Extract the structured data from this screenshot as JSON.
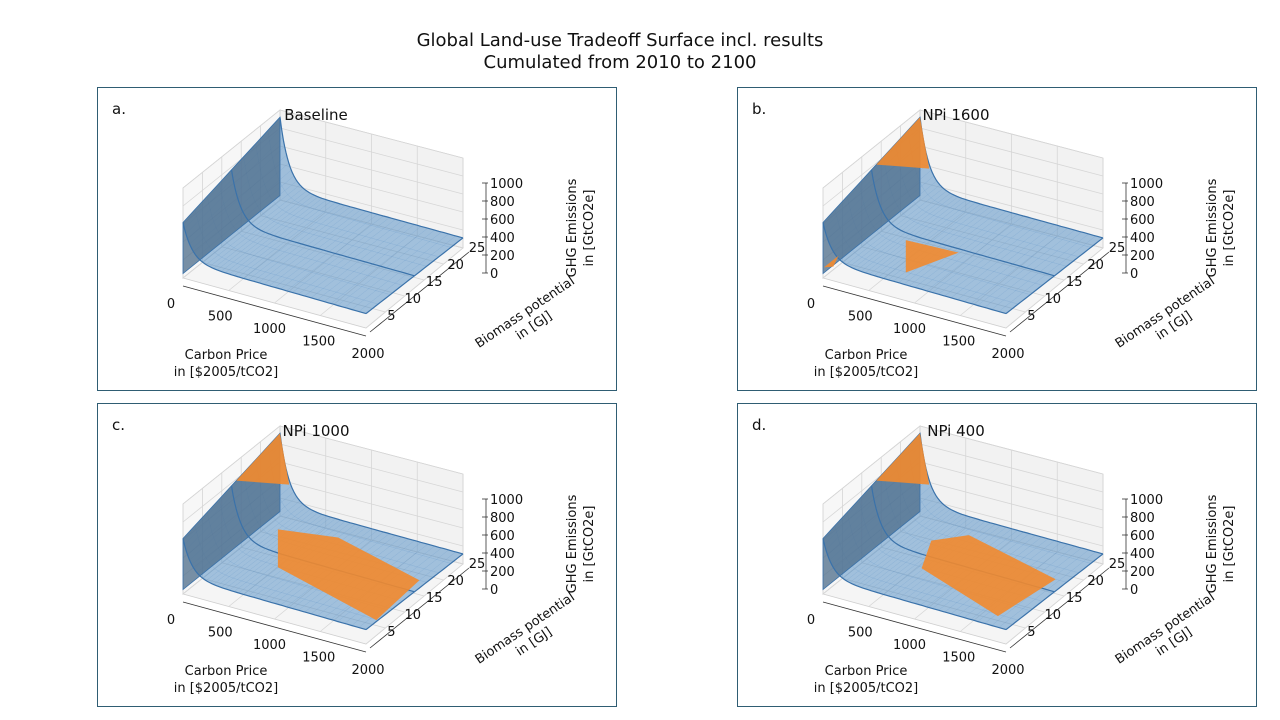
{
  "figure": {
    "title_line1": "Global Land-use Tradeoff Surface incl. results",
    "title_line2": "Cumulated from 2010 to 2100"
  },
  "colors": {
    "surface": "#5b93c7",
    "surface_edge": "#3a72aa",
    "result": "#f28a2e",
    "frame": "#2f5d73"
  },
  "chart_data": [
    {
      "id": "a",
      "type": "surface3d",
      "label": "a.",
      "title": "Baseline",
      "xlabel_line1": "Carbon Price",
      "xlabel_line2": "in [$2005/tCO2]",
      "ylabel_line1": "Biomass potential",
      "ylabel_line2": "in [GJ]",
      "zlabel_line1": "GHG Emissions",
      "zlabel_line2": "in [GtCO2e]",
      "xticks": [
        "0",
        "500",
        "1000",
        "1500",
        "2000"
      ],
      "xlim": [
        0,
        2000
      ],
      "yticks": [
        "5",
        "10",
        "15",
        "20",
        "25"
      ],
      "ylim": [
        0,
        25
      ],
      "zticks": [
        "0",
        "200",
        "400",
        "600",
        "800",
        "1000"
      ],
      "zlim": [
        0,
        1000
      ],
      "result_region": "none"
    },
    {
      "id": "b",
      "type": "surface3d",
      "label": "b.",
      "title": "NPi 1600",
      "xlabel_line1": "Carbon Price",
      "xlabel_line2": "in [$2005/tCO2]",
      "ylabel_line1": "Biomass potential",
      "ylabel_line2": "in [GJ]",
      "zlabel_line1": "GHG Emissions",
      "zlabel_line2": "in [GtCO2e]",
      "xticks": [
        "0",
        "500",
        "1000",
        "1500",
        "2000"
      ],
      "xlim": [
        0,
        2000
      ],
      "yticks": [
        "5",
        "10",
        "15",
        "20",
        "25"
      ],
      "ylim": [
        0,
        25
      ],
      "zticks": [
        "0",
        "200",
        "400",
        "600",
        "800",
        "1000"
      ],
      "zlim": [
        0,
        1000
      ],
      "result_region": "wedge"
    },
    {
      "id": "c",
      "type": "surface3d",
      "label": "c.",
      "title": "NPi 1000",
      "xlabel_line1": "Carbon Price",
      "xlabel_line2": "in [$2005/tCO2]",
      "ylabel_line1": "Biomass potential",
      "ylabel_line2": "in [GJ]",
      "zlabel_line1": "GHG Emissions",
      "zlabel_line2": "in [GtCO2e]",
      "xticks": [
        "0",
        "500",
        "1000",
        "1500",
        "2000"
      ],
      "xlim": [
        0,
        2000
      ],
      "yticks": [
        "5",
        "10",
        "15",
        "20",
        "25"
      ],
      "ylim": [
        0,
        25
      ],
      "zticks": [
        "0",
        "200",
        "400",
        "600",
        "800",
        "1000"
      ],
      "zlim": [
        0,
        1000
      ],
      "result_region": "wide"
    },
    {
      "id": "d",
      "type": "surface3d",
      "label": "d.",
      "title": "NPi 400",
      "xlabel_line1": "Carbon Price",
      "xlabel_line2": "in [$2005/tCO2]",
      "ylabel_line1": "Biomass potential",
      "ylabel_line2": "in [GJ]",
      "zlabel_line1": "GHG Emissions",
      "zlabel_line2": "in [GtCO2e]",
      "xticks": [
        "0",
        "500",
        "1000",
        "1500",
        "2000"
      ],
      "xlim": [
        0,
        2000
      ],
      "yticks": [
        "5",
        "10",
        "15",
        "20",
        "25"
      ],
      "ylim": [
        0,
        25
      ],
      "zticks": [
        "0",
        "200",
        "400",
        "600",
        "800",
        "1000"
      ],
      "zlim": [
        0,
        1000
      ],
      "result_region": "low"
    }
  ]
}
